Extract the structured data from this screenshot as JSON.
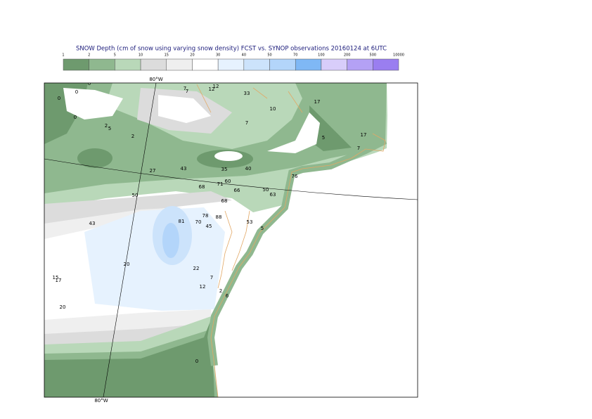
{
  "title": "SNOW Depth (cm of snow using varying snow density) FCST vs. SYNOP observations  20160124 at 6UTC",
  "legend": {
    "ticks": [
      1,
      2,
      5,
      10,
      15,
      20,
      30,
      40,
      50,
      70,
      100,
      200,
      500,
      10000
    ],
    "colors": [
      "#6e9a6e",
      "#8fb88f",
      "#b9d8b9",
      "#dcdcdc",
      "#efefef",
      "#ffffff",
      "#e6f2fe",
      "#cce3fb",
      "#b3d5fa",
      "#7fb8f5",
      "#d8cdfa",
      "#b4a1f5",
      "#9a7ef0"
    ]
  },
  "graticule": {
    "top_label": "80°W",
    "bottom_label": "80°W"
  },
  "observations": [
    0,
    0,
    0,
    0,
    2,
    5,
    2,
    7,
    7,
    12,
    12,
    33,
    10,
    17,
    7,
    5,
    17,
    7,
    27,
    43,
    35,
    40,
    76,
    50,
    68,
    71,
    60,
    66,
    50,
    63,
    68,
    43,
    81,
    78,
    70,
    88,
    53,
    5,
    45,
    20,
    22,
    7,
    12,
    15,
    17,
    2,
    6,
    20,
    0
  ]
}
